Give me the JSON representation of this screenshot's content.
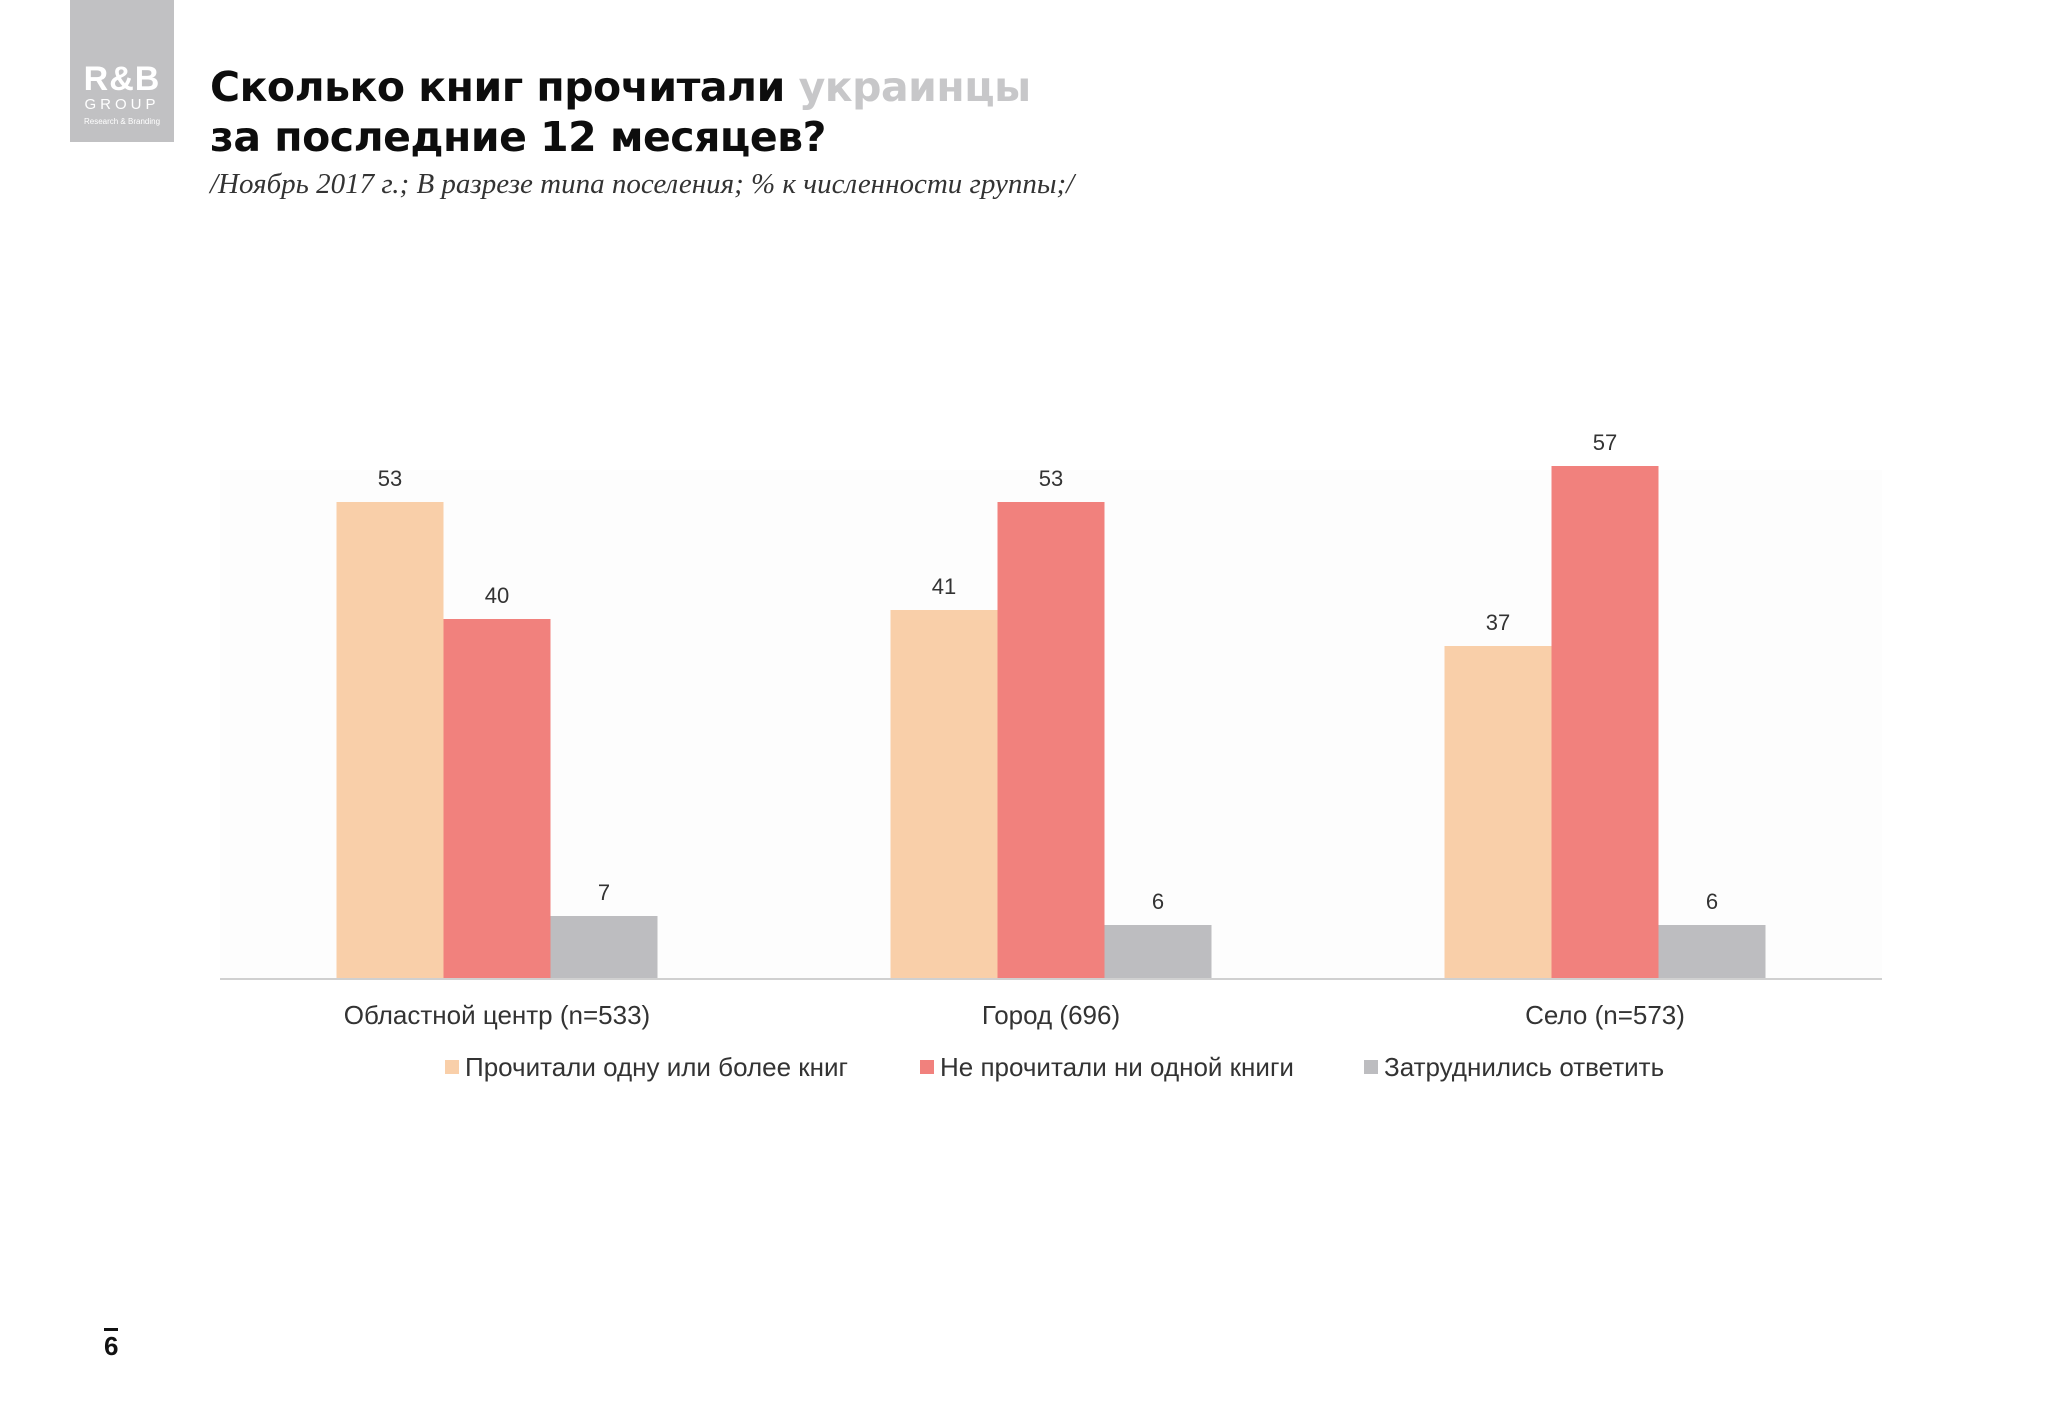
{
  "logo": {
    "main": "R&B",
    "sub": "GROUP",
    "tagline": "Research & Branding"
  },
  "title": {
    "part1": "Сколько книг прочитали ",
    "accent": "украинцы",
    "line2": "за последние 12 месяцев?"
  },
  "subtitle": "/Ноябрь 2017 г.; В разрезе типа поселения; % к численности группы;/",
  "page_number": "6",
  "colors": {
    "read": "#f9cfa9",
    "not_read": "#f1817d",
    "hard_to_say": "#bdbdc0",
    "axis": "#d0d0d0",
    "text": "#333333"
  },
  "chart_data": {
    "type": "bar",
    "title": "Сколько книг прочитали украинцы за последние 12 месяцев?",
    "categories": [
      "Областной центр (n=533)",
      "Город (696)",
      "Село (n=573)"
    ],
    "series": [
      {
        "name": "Прочитали одну или более книг",
        "values": [
          53,
          41,
          37
        ],
        "color": "#f9cfa9"
      },
      {
        "name": "Не прочитали ни одной книги",
        "values": [
          40,
          53,
          57
        ],
        "color": "#f1817d"
      },
      {
        "name": "Затруднились ответить",
        "values": [
          7,
          6,
          6
        ],
        "color": "#bdbdc0"
      }
    ],
    "xlabel": "",
    "ylabel": "",
    "ylim": [
      0,
      57
    ],
    "grid": false,
    "legend": "bottom"
  }
}
